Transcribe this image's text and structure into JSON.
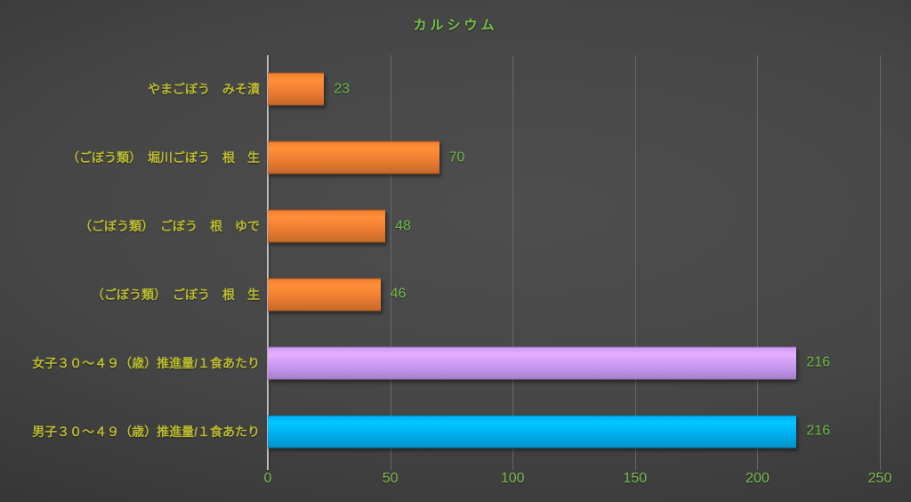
{
  "chart_data": {
    "type": "bar",
    "orientation": "horizontal",
    "title": "カルシウム",
    "categories": [
      "やまごぼう　みそ漬",
      "（ごぼう類）　堀川ごぼう　根　生",
      "（ごぼう類）　ごぼう　根　ゆで",
      "（ごぼう類）　ごぼう　根　生",
      "女子３０～４９（歳）推進量/１食あたり",
      "男子３０～４９（歳）推進量/１食あたり"
    ],
    "values": [
      23,
      70,
      48,
      46,
      216,
      216
    ],
    "bar_colors": [
      "#ed7d31",
      "#ed7d31",
      "#ed7d31",
      "#ed7d31",
      "#c999f3",
      "#00aeef"
    ],
    "xlabel": "",
    "ylabel": "",
    "xlim": [
      0,
      250
    ],
    "xticks": [
      0,
      50,
      100,
      150,
      200,
      250
    ],
    "grid": true,
    "legend": false
  },
  "colors": {
    "title_text": "#77c243",
    "category_text": "#b9ba30",
    "value_text": "#6fba4a",
    "tick_text": "#7cbb50",
    "gridline": "#686868",
    "axis_line": "#bdbdbd",
    "background": "#3e3e3e"
  }
}
